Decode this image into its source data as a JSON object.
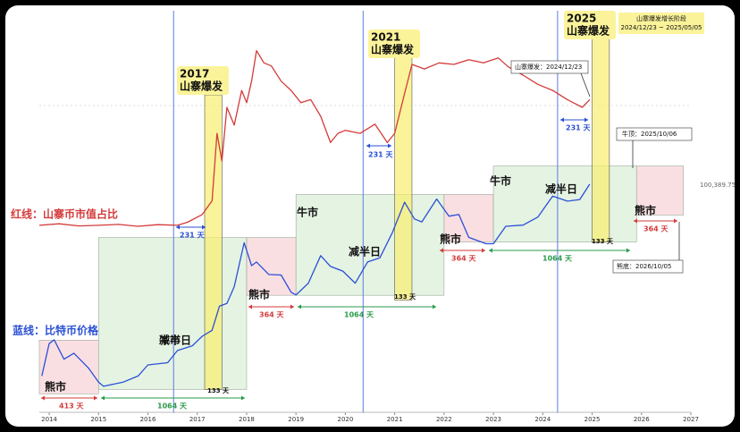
{
  "chart_data": {
    "type": "line",
    "x_scale": "year",
    "y_scale": "log",
    "xlim": [
      2013.8,
      2027.0
    ],
    "xticks": [
      2014,
      2015,
      2016,
      2017,
      2018,
      2019,
      2020,
      2021,
      2022,
      2023,
      2024,
      2025,
      2026,
      2027
    ],
    "ylim": [
      100,
      10000000
    ],
    "y2lim": [
      -51,
      73
    ],
    "series": [
      {
        "name": "红线：山寨币市值占比",
        "color": "#d43a3a",
        "axis": "y2",
        "x": [
          2013.8,
          2014.2,
          2014.6,
          2015.0,
          2015.4,
          2015.8,
          2016.2,
          2016.6,
          2016.8,
          2017.1,
          2017.3,
          2017.4,
          2017.5,
          2017.6,
          2017.75,
          2017.9,
          2018.0,
          2018.1,
          2018.2,
          2018.35,
          2018.5,
          2018.7,
          2018.9,
          2019.1,
          2019.3,
          2019.5,
          2019.7,
          2019.85,
          2020.0,
          2020.3,
          2020.6,
          2020.85,
          2021.0,
          2021.2,
          2021.35,
          2021.6,
          2021.9,
          2022.2,
          2022.5,
          2022.8,
          2023.1,
          2023.3,
          2023.6,
          2023.9,
          2024.2,
          2024.5,
          2024.8,
          2024.95
        ],
        "values": [
          10,
          10.5,
          9.8,
          10,
          10.3,
          9.7,
          10.2,
          10,
          11,
          13.5,
          18,
          40,
          31,
          48.5,
          42.7,
          54,
          50,
          57,
          67,
          63,
          62,
          57,
          54,
          50,
          51,
          45.6,
          37,
          40,
          41,
          40,
          43,
          37,
          40,
          53,
          62.5,
          61,
          63,
          62.5,
          64,
          63,
          64.6,
          61.7,
          59,
          56,
          54,
          51,
          48.5,
          51
        ]
      },
      {
        "name": "蓝线：比特币价格",
        "color": "#2a50d6",
        "axis": "y",
        "x": [
          2013.85,
          2014.0,
          2014.1,
          2014.3,
          2014.5,
          2014.8,
          2015.0,
          2015.1,
          2015.5,
          2015.8,
          2016.0,
          2016.4,
          2016.6,
          2016.9,
          2017.1,
          2017.3,
          2017.45,
          2017.6,
          2017.75,
          2017.95,
          2018.1,
          2018.2,
          2018.45,
          2018.7,
          2018.9,
          2019.0,
          2019.25,
          2019.5,
          2019.7,
          2019.95,
          2020.2,
          2020.45,
          2020.7,
          2020.95,
          2021.2,
          2021.4,
          2021.55,
          2021.85,
          2022.1,
          2022.3,
          2022.5,
          2022.85,
          2023.0,
          2023.25,
          2023.6,
          2023.9,
          2024.2,
          2024.5,
          2024.75,
          2024.95
        ],
        "values": [
          300,
          800,
          900,
          500,
          600,
          380,
          250,
          220,
          250,
          300,
          420,
          450,
          650,
          750,
          1000,
          1200,
          2500,
          2700,
          4500,
          17000,
          8500,
          9500,
          6500,
          6400,
          3800,
          3500,
          5000,
          11500,
          8300,
          7200,
          5000,
          9500,
          10800,
          23000,
          58000,
          35000,
          32000,
          64000,
          38000,
          40000,
          20000,
          16500,
          16500,
          28000,
          29000,
          37000,
          70000,
          60000,
          63000,
          100389.75
        ]
      }
    ],
    "end_label": "100,389.75",
    "regions": [
      {
        "label": "熊市",
        "color": "#f7c9cf",
        "x0": 2013.8,
        "x1": 2015.0,
        "low": 175,
        "high": 890
      },
      {
        "label": "牛市",
        "color": "#d3ebd0",
        "x0": 2015.0,
        "x1": 2018.0,
        "low": 200,
        "high": 19900
      },
      {
        "label": "熊市",
        "color": "#f7c9cf",
        "x0": 2018.0,
        "x1": 2019.0,
        "low": 3460,
        "high": 19900
      },
      {
        "label": "牛市",
        "color": "#d3ebd0",
        "x0": 2019.0,
        "x1": 2022.0,
        "low": 3460,
        "high": 73400
      },
      {
        "label": "熊市",
        "color": "#f7c9cf",
        "x0": 2022.0,
        "x1": 2023.0,
        "low": 17400,
        "high": 73400
      },
      {
        "label": "牛市",
        "color": "#d3ebd0",
        "x0": 2023.0,
        "x1": 2025.9,
        "low": 17400,
        "high": 174000
      },
      {
        "label": "熊市",
        "color": "#f7c9cf",
        "x0": 2025.9,
        "x1": 2026.85,
        "low": 39400,
        "high": 174000
      }
    ],
    "booms": [
      {
        "year": "2017",
        "text": "山寨爆发",
        "color": "#f8ee6e",
        "x0": 2017.15,
        "x1": 2017.5,
        "low": 200,
        "high": 1500000
      },
      {
        "year": "2021",
        "text": "山寨爆发",
        "color": "#f8ee6e",
        "x0": 2021.0,
        "x1": 2021.35,
        "low": 3000,
        "high": 5100000
      },
      {
        "year": "2025",
        "text": "山寨爆发",
        "color": "#f8ee6e",
        "x0": 2025.0,
        "x1": 2025.35,
        "low": 17400,
        "high": 8900000
      }
    ],
    "halvings": {
      "label": "减半日",
      "color": "#5a7be0",
      "x": [
        2016.52,
        2020.36,
        2024.3
      ]
    },
    "durations": [
      "413 天",
      "1064 天",
      "364 天",
      "1064 天",
      "364 天",
      "1064 天",
      "364 天",
      "231 天",
      "231 天",
      "231 天",
      "133 天",
      "133 天",
      "133 天"
    ],
    "notes": [
      "山寨爆发增长阶段",
      "2024/12/23 ~ 2025/05/05",
      "山寨爆发：2024/12/23",
      "牛顶：2025/10/06",
      "熊底：2026/10/05"
    ]
  }
}
